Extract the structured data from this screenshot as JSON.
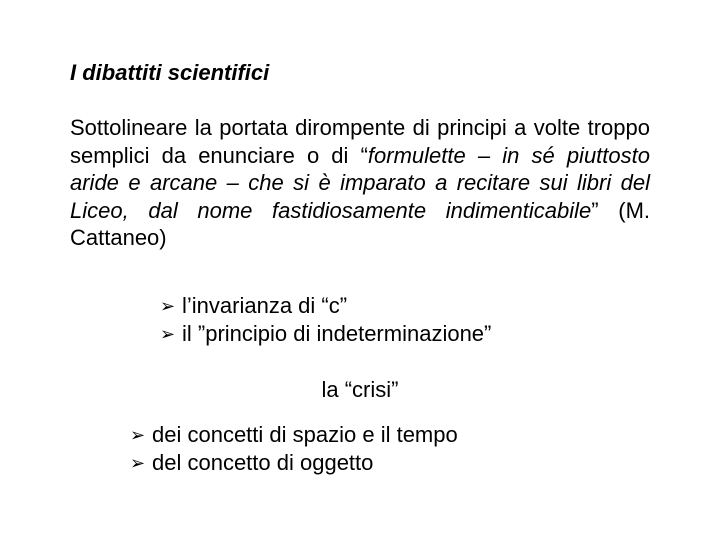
{
  "title": "I dibattiti scientifici",
  "paragraph": {
    "pre": "Sottolineare la portata dirompente di principi a volte troppo semplici da enunciare o di “",
    "quote": "formulette – in sé piuttosto aride e arcane – che si è imparato a recitare sui libri del Liceo, dal nome fastidiosamente indimenticabile",
    "post": "” (M. Cattaneo)"
  },
  "list1": [
    "l’invarianza di “c”",
    "il ”principio di indeterminazione”"
  ],
  "centerLabel": "la “crisi”",
  "list2": [
    "dei concetti di spazio e il tempo",
    "del concetto di oggetto"
  ],
  "style": {
    "bullet_glyph": "➢",
    "text_color": "#000000",
    "background_color": "#ffffff",
    "title_fontsize": 22,
    "body_fontsize": 22,
    "font_family": "Arial"
  }
}
